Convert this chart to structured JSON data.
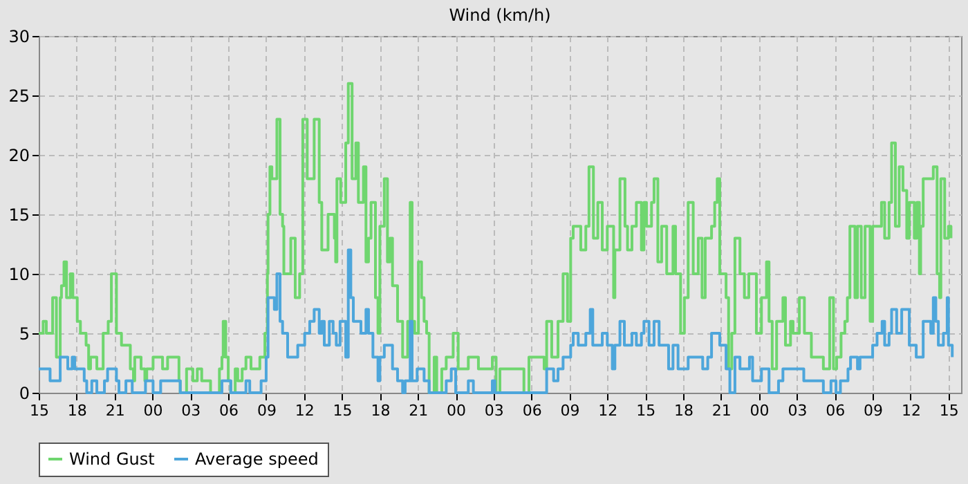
{
  "chart_data": {
    "type": "step",
    "title": "Wind (km/h)",
    "xlim": [
      15,
      88
    ],
    "ylim": [
      0,
      30
    ],
    "yticks": [
      0,
      5,
      10,
      15,
      20,
      25,
      30
    ],
    "xticks": [
      {
        "value": 15,
        "label": "15"
      },
      {
        "value": 18,
        "label": "18"
      },
      {
        "value": 21,
        "label": "21"
      },
      {
        "value": 24,
        "label": "00"
      },
      {
        "value": 27,
        "label": "03"
      },
      {
        "value": 30,
        "label": "06"
      },
      {
        "value": 33,
        "label": "09"
      },
      {
        "value": 36,
        "label": "12"
      },
      {
        "value": 39,
        "label": "15"
      },
      {
        "value": 42,
        "label": "18"
      },
      {
        "value": 45,
        "label": "21"
      },
      {
        "value": 48,
        "label": "00"
      },
      {
        "value": 51,
        "label": "03"
      },
      {
        "value": 54,
        "label": "06"
      },
      {
        "value": 57,
        "label": "09"
      },
      {
        "value": 60,
        "label": "12"
      },
      {
        "value": 63,
        "label": "15"
      },
      {
        "value": 66,
        "label": "18"
      },
      {
        "value": 69,
        "label": "21"
      },
      {
        "value": 72,
        "label": "00"
      },
      {
        "value": 75,
        "label": "03"
      },
      {
        "value": 78,
        "label": "06"
      },
      {
        "value": 81,
        "label": "09"
      },
      {
        "value": 84,
        "label": "12"
      },
      {
        "value": 87,
        "label": "15"
      }
    ],
    "grid": true,
    "legend": "bottom",
    "line_style": "solid",
    "series": [
      {
        "name": "Wind Gust",
        "color": "#6fd66f",
        "x": [
          15,
          15.35,
          15.6,
          16.1,
          16.4,
          16.7,
          16.8,
          17.0,
          17.2,
          17.5,
          17.7,
          18.05,
          18.3,
          18.75,
          18.95,
          19.1,
          19.6,
          20.1,
          20.5,
          20.75,
          21.15,
          21.55,
          22.25,
          22.5,
          22.6,
          23.1,
          23.4,
          23.55,
          24.05,
          24.8,
          25.2,
          26.1,
          26.2,
          26.7,
          27.2,
          27.55,
          27.9,
          28.6,
          29.3,
          29.5,
          29.6,
          29.8,
          30.0,
          30.2,
          30.55,
          30.75,
          31.1,
          31.4,
          31.8,
          32.5,
          32.9,
          33.1,
          33.15,
          33.3,
          33.45,
          33.85,
          34.1,
          34.3,
          34.4,
          34.95,
          35.3,
          35.65,
          35.9,
          36.25,
          36.8,
          37.2,
          37.4,
          37.9,
          38.4,
          38.5,
          38.6,
          38.9,
          39.3,
          39.5,
          39.8,
          40.1,
          40.3,
          40.7,
          40.9,
          41.1,
          41.3,
          41.65,
          41.85,
          42.0,
          42.35,
          42.6,
          42.8,
          43.0,
          43.4,
          43.8,
          44.2,
          44.4,
          44.55,
          44.75,
          45.05,
          45.3,
          45.5,
          45.7,
          45.9,
          46.3,
          46.5,
          46.9,
          47.25,
          47.8,
          48.2,
          49.0,
          49.8,
          50.35,
          50.9,
          51.2,
          51.5,
          53.4,
          53.8,
          55.0,
          55.2,
          55.6,
          56.1,
          56.5,
          56.85,
          57.1,
          57.3,
          57.9,
          58.3,
          58.55,
          58.9,
          59.25,
          59.6,
          60.0,
          60.5,
          60.6,
          61.0,
          61.4,
          61.6,
          61.95,
          62.3,
          62.7,
          62.9,
          63.1,
          63.5,
          63.7,
          64.0,
          64.3,
          64.7,
          65.2,
          65.4,
          65.8,
          66.1,
          66.4,
          66.8,
          67.2,
          67.5,
          67.75,
          68.25,
          68.5,
          68.7,
          68.9,
          69.4,
          69.6,
          69.85,
          70.1,
          70.5,
          70.85,
          71.2,
          71.8,
          72.2,
          72.6,
          72.8,
          73.05,
          73.4,
          73.9,
          74.1,
          74.5,
          74.7,
          75.2,
          75.6,
          76.15,
          77.1,
          77.6,
          77.9,
          78.15,
          78.5,
          78.8,
          79.0,
          79.2,
          79.6,
          79.8,
          80.1,
          80.4,
          80.8,
          81.0,
          81.7,
          81.95,
          82.3,
          82.5,
          82.8,
          83.1,
          83.4,
          83.7,
          83.9,
          84.3,
          84.5,
          84.7,
          84.8,
          85.0,
          85.8,
          86.1,
          86.3,
          86.4,
          86.7,
          87.0,
          87.2
        ],
        "values": [
          5,
          6,
          5,
          8,
          3,
          8,
          9,
          11,
          8,
          10,
          8,
          6,
          5,
          4,
          2,
          3,
          2,
          5,
          6,
          10,
          5,
          4,
          2,
          1,
          3,
          2,
          1,
          2,
          3,
          2,
          3,
          1,
          0,
          2,
          1,
          2,
          1,
          0,
          2,
          3,
          6,
          3,
          1,
          0,
          2,
          1,
          2,
          3,
          2,
          3,
          5,
          10,
          15,
          19,
          18,
          23,
          15,
          14,
          10,
          13,
          8,
          10,
          23,
          18,
          23,
          16,
          12,
          15,
          13,
          11,
          18,
          16,
          21,
          26,
          18,
          21,
          16,
          19,
          11,
          13,
          16,
          8,
          5,
          14,
          18,
          11,
          13,
          9,
          6,
          3,
          6,
          16,
          6,
          5,
          11,
          8,
          6,
          5,
          0,
          3,
          0,
          2,
          3,
          5,
          2,
          3,
          2,
          2,
          3,
          0,
          2,
          0,
          3,
          2,
          6,
          3,
          6,
          10,
          6,
          13,
          14,
          12,
          14,
          19,
          13,
          16,
          12,
          14,
          8,
          12,
          18,
          14,
          12,
          14,
          16,
          12,
          16,
          14,
          16,
          18,
          11,
          14,
          10,
          14,
          10,
          5,
          8,
          16,
          10,
          13,
          8,
          13,
          14,
          16,
          18,
          10,
          8,
          2,
          5,
          13,
          10,
          8,
          10,
          5,
          8,
          11,
          6,
          2,
          6,
          8,
          4,
          6,
          5,
          8,
          5,
          3,
          2,
          8,
          2,
          3,
          5,
          6,
          8,
          14,
          8,
          14,
          8,
          14,
          6,
          14,
          16,
          13,
          16,
          21,
          14,
          19,
          17,
          13,
          16,
          13,
          16,
          10,
          14,
          18,
          19,
          10,
          8,
          18,
          13,
          14,
          13
        ]
      },
      {
        "name": "Average speed",
        "color": "#4da6db",
        "x": [
          15,
          15.9,
          16.7,
          17.3,
          17.65,
          17.85,
          18.6,
          18.8,
          19.2,
          19.6,
          20.2,
          20.45,
          21.15,
          21.35,
          21.9,
          22.4,
          23.45,
          24.05,
          24.65,
          26.2,
          29.5,
          30.2,
          31.4,
          31.7,
          32.6,
          33.0,
          33.15,
          33.65,
          33.85,
          34.1,
          34.3,
          34.7,
          35.5,
          36.05,
          36.45,
          36.8,
          37.2,
          37.4,
          37.6,
          38.0,
          38.3,
          38.55,
          38.85,
          39.3,
          39.5,
          39.7,
          39.9,
          40.5,
          40.9,
          41.1,
          41.45,
          41.85,
          42.0,
          42.35,
          43.0,
          43.4,
          43.8,
          44.0,
          44.4,
          44.55,
          44.95,
          45.5,
          45.9,
          47.25,
          47.65,
          48.0,
          49.0,
          49.4,
          50.9,
          51.1,
          55.2,
          55.75,
          56.1,
          56.5,
          57.1,
          57.3,
          57.7,
          58.3,
          58.65,
          58.85,
          59.6,
          60.0,
          60.4,
          60.6,
          61.0,
          61.35,
          61.95,
          62.3,
          62.7,
          62.9,
          63.3,
          63.7,
          64.1,
          64.85,
          65.2,
          65.6,
          66.4,
          67.55,
          67.95,
          68.25,
          68.9,
          69.4,
          69.7,
          70.1,
          70.5,
          71.25,
          71.5,
          72.2,
          72.8,
          73.55,
          73.9,
          75.55,
          77.1,
          77.7,
          78.1,
          78.45,
          79.05,
          79.25,
          79.8,
          80.0,
          81.0,
          81.35,
          81.75,
          81.95,
          82.3,
          82.5,
          82.9,
          83.3,
          83.9,
          84.45,
          85.0,
          85.6,
          85.8,
          86.0,
          86.2,
          86.6,
          86.9,
          87.0,
          87.3
        ],
        "values": [
          2,
          1,
          3,
          2,
          3,
          2,
          1,
          0,
          1,
          0,
          1,
          2,
          1,
          0,
          1,
          0,
          1,
          0,
          1,
          0,
          1,
          0,
          1,
          0,
          1,
          3,
          8,
          7,
          10,
          6,
          5,
          3,
          4,
          5,
          6,
          7,
          5,
          6,
          4,
          6,
          5,
          4,
          6,
          3,
          12,
          8,
          6,
          5,
          7,
          5,
          3,
          1,
          3,
          4,
          2,
          1,
          0,
          1,
          6,
          1,
          2,
          1,
          0,
          1,
          2,
          0,
          1,
          0,
          1,
          0,
          2,
          1,
          2,
          3,
          4,
          5,
          4,
          5,
          7,
          4,
          5,
          4,
          2,
          4,
          6,
          4,
          5,
          4,
          5,
          6,
          4,
          6,
          4,
          2,
          4,
          2,
          3,
          2,
          3,
          5,
          4,
          2,
          0,
          3,
          2,
          3,
          1,
          2,
          0,
          1,
          2,
          1,
          0,
          1,
          0,
          1,
          2,
          3,
          2,
          3,
          4,
          5,
          6,
          4,
          5,
          7,
          5,
          7,
          4,
          3,
          6,
          5,
          8,
          6,
          4,
          5,
          8,
          4,
          3
        ]
      }
    ]
  }
}
